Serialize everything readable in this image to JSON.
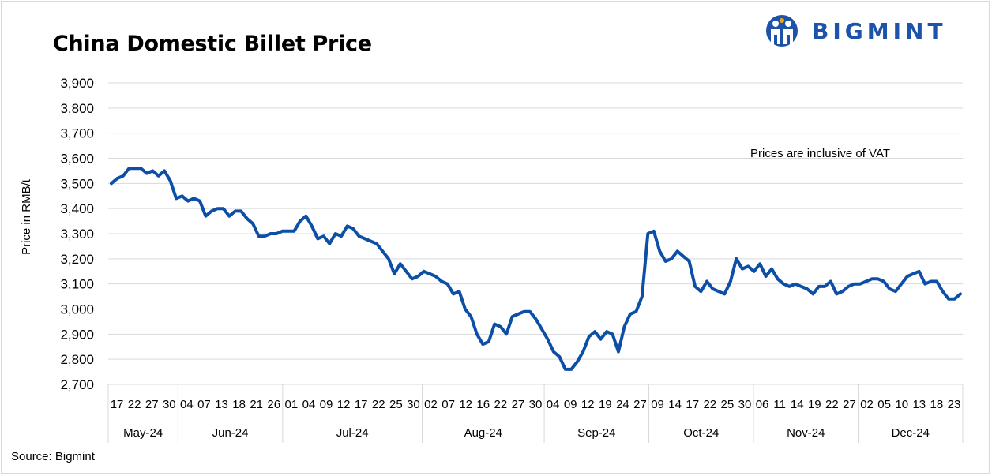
{
  "title": "China Domestic Billet Price",
  "source": "Source: Bigmint",
  "logo": {
    "text": "BIGMINT",
    "color": "#1d53a8"
  },
  "colors": {
    "line": "#0d4fa6",
    "grid": "#d9d9d9"
  },
  "chart_data": {
    "type": "line",
    "ylabel": "Price in RMB/t",
    "ylim": [
      2700,
      3900
    ],
    "yticks": [
      3900,
      3800,
      3700,
      3600,
      3500,
      3400,
      3300,
      3200,
      3100,
      3000,
      2900,
      2800,
      2700
    ],
    "ytick_labels": [
      "3,900",
      "3,800",
      "3,700",
      "3,600",
      "3,500",
      "3,400",
      "3,300",
      "3,200",
      "3,100",
      "3,000",
      "2,900",
      "2,800",
      "2,700"
    ],
    "annotation": "Prices are inclusive of VAT",
    "grid": true,
    "legend": "none",
    "x_tick_labels": [
      "17",
      "22",
      "27",
      "30",
      "04",
      "07",
      "13",
      "18",
      "21",
      "26",
      "01",
      "04",
      "09",
      "12",
      "17",
      "22",
      "25",
      "30",
      "02",
      "07",
      "12",
      "16",
      "22",
      "27",
      "30",
      "04",
      "09",
      "12",
      "19",
      "24",
      "27",
      "09",
      "14",
      "17",
      "22",
      "25",
      "30",
      "06",
      "11",
      "14",
      "19",
      "22",
      "27",
      "02",
      "05",
      "10",
      "13",
      "18",
      "23"
    ],
    "months": [
      {
        "label": "May-24",
        "start": 0,
        "end": 3
      },
      {
        "label": "Jun-24",
        "start": 4,
        "end": 9
      },
      {
        "label": "Jul-24",
        "start": 10,
        "end": 17
      },
      {
        "label": "Aug-24",
        "start": 18,
        "end": 24
      },
      {
        "label": "Sep-24",
        "start": 25,
        "end": 30
      },
      {
        "label": "Oct-24",
        "start": 31,
        "end": 36
      },
      {
        "label": "Nov-24",
        "start": 37,
        "end": 42
      },
      {
        "label": "Dec-24",
        "start": 43,
        "end": 48
      }
    ],
    "series": [
      {
        "color": "#0d4fa6",
        "values": [
          3500,
          3520,
          3530,
          3560,
          3560,
          3560,
          3540,
          3550,
          3530,
          3550,
          3510,
          3440,
          3450,
          3430,
          3440,
          3430,
          3370,
          3390,
          3400,
          3400,
          3370,
          3390,
          3390,
          3360,
          3340,
          3290,
          3290,
          3300,
          3300,
          3310,
          3310,
          3310,
          3350,
          3370,
          3330,
          3280,
          3290,
          3260,
          3300,
          3290,
          3330,
          3320,
          3290,
          3280,
          3270,
          3260,
          3230,
          3200,
          3140,
          3180,
          3150,
          3120,
          3130,
          3150,
          3140,
          3130,
          3110,
          3100,
          3060,
          3070,
          3000,
          2970,
          2900,
          2860,
          2870,
          2940,
          2930,
          2900,
          2970,
          2980,
          2990,
          2990,
          2960,
          2920,
          2880,
          2830,
          2810,
          2760,
          2760,
          2790,
          2830,
          2890,
          2910,
          2880,
          2910,
          2900,
          2830,
          2930,
          2980,
          2990,
          3050,
          3300,
          3310,
          3230,
          3190,
          3200,
          3230,
          3210,
          3190,
          3090,
          3070,
          3110,
          3080,
          3070,
          3060,
          3110,
          3200,
          3160,
          3170,
          3150,
          3180,
          3130,
          3160,
          3120,
          3100,
          3090,
          3100,
          3090,
          3080,
          3060,
          3090,
          3090,
          3110,
          3060,
          3070,
          3090,
          3100,
          3100,
          3110,
          3120,
          3120,
          3110,
          3080,
          3070,
          3100,
          3130,
          3140,
          3150,
          3100,
          3110,
          3110,
          3070,
          3040,
          3040,
          3060
        ]
      }
    ]
  }
}
